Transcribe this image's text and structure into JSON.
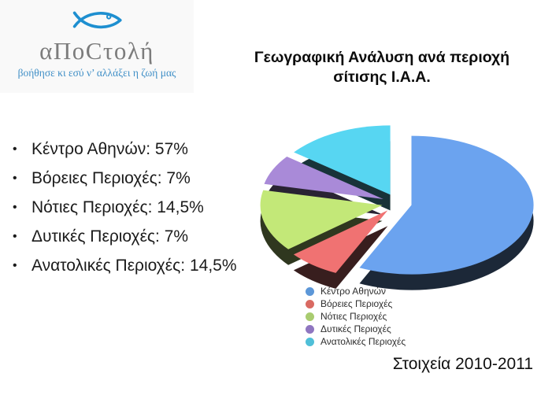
{
  "logo": {
    "wordmark": "αΠοCτολή",
    "tagline": "βοήθησε κι εσύ ν’ αλλάξει η ζωή μας",
    "fish_color": "#1e8fd0",
    "wordmark_color": "#7c7c7c",
    "tagline_color": "#3e8ec6"
  },
  "title": {
    "line1": "Γεωγραφική Ανάλυση ανά περιοχή",
    "line2": "σίτισης Ι.Α.Α."
  },
  "bullets": [
    "Κέντρο Αθηνών: 57%",
    "Βόρειες Περιοχές: 7%",
    "Νότιες Περιοχές: 14,5%",
    "Δυτικές Περιοχές: 7%",
    "Ανατολικές Περιοχές: 14,5%"
  ],
  "footer": {
    "text": "Στοιχεία 2010-2011"
  },
  "chart_data": {
    "type": "pie",
    "style": "3d-exploded",
    "title": "Γεωγραφική Ανάλυση ανά περιοχή σίτισης Ι.Α.Α.",
    "labels": [
      "Κέντρο Αθηνών",
      "Βόρειες Περιοχές",
      "Νότιες Περιοχές",
      "Δυτικές Περιοχές",
      "Ανατολικές Περιοχές"
    ],
    "values": [
      57,
      7,
      14.5,
      7,
      14.5
    ],
    "colors": [
      "#6ba3ef",
      "#f07272",
      "#c3e878",
      "#a98ad8",
      "#57d6f2"
    ],
    "legend_colors": [
      "#5c97d8",
      "#d96a62",
      "#a9cc70",
      "#8f76c0",
      "#4fbfd8"
    ],
    "start_angle_deg": -90,
    "direction": "clockwise",
    "legend_position": "bottom-inside"
  }
}
